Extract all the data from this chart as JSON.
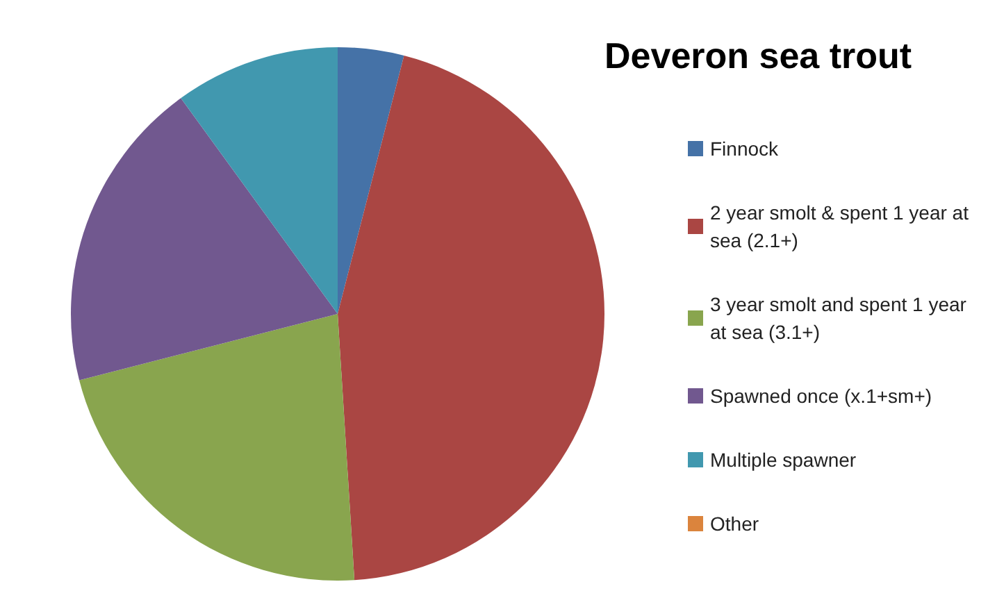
{
  "chart_data": {
    "type": "pie",
    "title": "Deveron sea trout",
    "categories": [
      "Finnock",
      "2 year smolt & spent 1 year at sea (2.1+)",
      "3 year smolt and spent 1 year at sea (3.1+)",
      "Spawned once (x.1+sm+)",
      "Multiple spawner",
      "Other"
    ],
    "values": [
      4,
      45,
      22,
      19,
      10,
      0
    ],
    "colors": [
      "#4572a7",
      "#aa4643",
      "#89a54e",
      "#71588f",
      "#4198af",
      "#db843d"
    ],
    "legend": "right"
  }
}
